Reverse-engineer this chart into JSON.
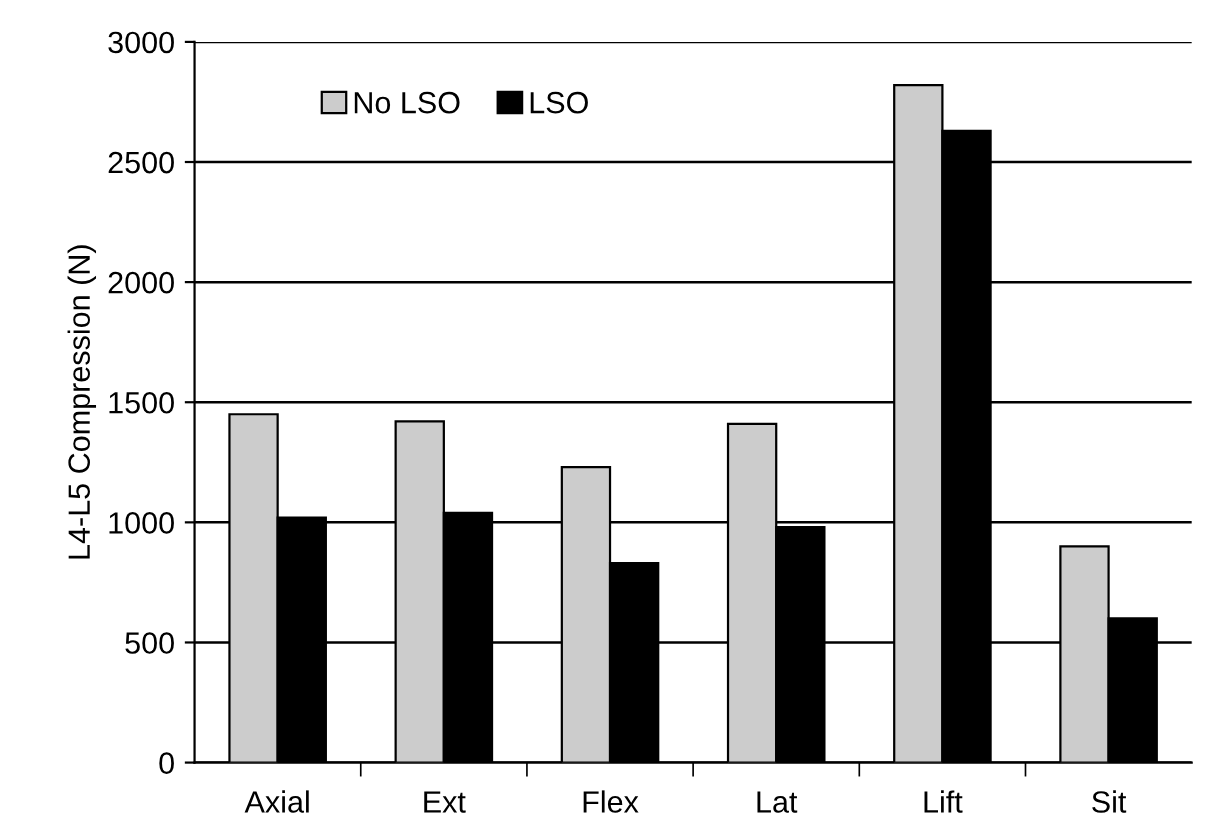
{
  "chart_data": {
    "type": "bar",
    "ylabel": "L4-L5 Compression (N)",
    "categories": [
      "Axial",
      "Ext",
      "Flex",
      "Lat",
      "Lift",
      "Sit"
    ],
    "series": [
      {
        "name": "No LSO",
        "color": "#cccccc",
        "values": [
          1450,
          1420,
          1230,
          1410,
          2820,
          900
        ]
      },
      {
        "name": "LSO",
        "color": "#000000",
        "values": [
          1020,
          1040,
          830,
          980,
          2630,
          600
        ]
      }
    ],
    "ylim": [
      0,
      3000
    ],
    "yticks": [
      0,
      500,
      1000,
      1500,
      2000,
      2500,
      3000
    ],
    "grid": "y",
    "legend": "top left"
  }
}
